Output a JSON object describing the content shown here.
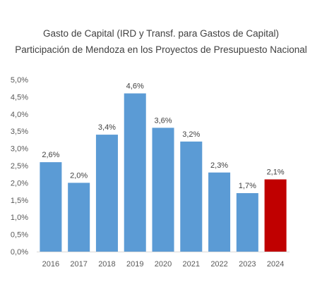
{
  "chart_data": {
    "type": "bar",
    "title": "Gasto de Capital (IRD y Transf. para Gastos de Capital)",
    "subtitle": "Participación de Mendoza en los Proyectos de Presupuesto Nacional",
    "categories": [
      "2016",
      "2017",
      "2018",
      "2019",
      "2020",
      "2021",
      "2022",
      "2023",
      "2024"
    ],
    "values": [
      2.6,
      2.0,
      3.4,
      4.6,
      3.6,
      3.2,
      2.3,
      1.7,
      2.1
    ],
    "data_labels": [
      "2,6%",
      "2,0%",
      "3,4%",
      "4,6%",
      "3,6%",
      "3,2%",
      "2,3%",
      "1,7%",
      "2,1%"
    ],
    "yticks": [
      0,
      0.5,
      1.0,
      1.5,
      2.0,
      2.5,
      3.0,
      3.5,
      4.0,
      4.5,
      5.0
    ],
    "ytick_labels": [
      "0,0%",
      "0,5%",
      "1,0%",
      "1,5%",
      "2,0%",
      "2,5%",
      "3,0%",
      "3,5%",
      "4,0%",
      "4,5%",
      "5,0%"
    ],
    "ylim": [
      0,
      5.0
    ],
    "xlabel": "",
    "ylabel": "",
    "grid": false,
    "legend": "none",
    "colors": {
      "bar": "#5b9bd5",
      "highlight_bar": "#c00000",
      "axis": "#d9d9d9"
    },
    "highlight_category": "2024"
  }
}
